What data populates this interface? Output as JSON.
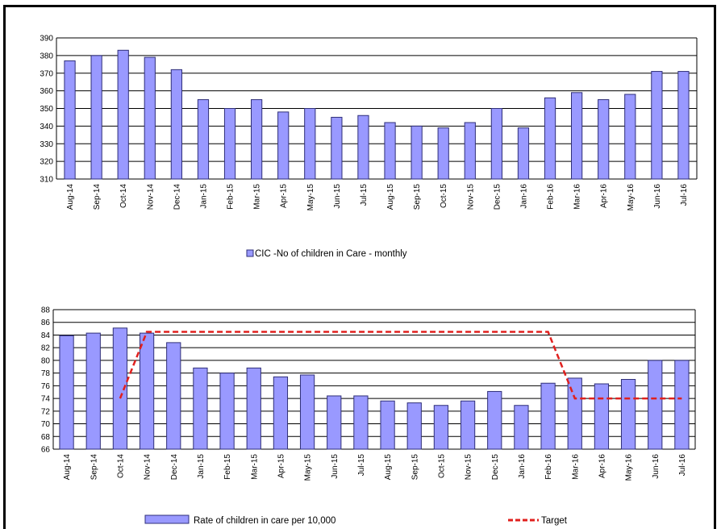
{
  "colors": {
    "bar_fill": "#9999ff",
    "bar_stroke": "#2f2f78",
    "grid": "#000000",
    "target_line": "#e0201e"
  },
  "chart_data": [
    {
      "type": "bar",
      "categories": [
        "Aug-14",
        "Sep-14",
        "Oct-14",
        "Nov-14",
        "Dec-14",
        "Jan-15",
        "Feb-15",
        "Mar-15",
        "Apr-15",
        "May-15",
        "Jun-15",
        "Jul-15",
        "Aug-15",
        "Sep-15",
        "Oct-15",
        "Nov-15",
        "Dec-15",
        "Jan-16",
        "Feb-16",
        "Mar-16",
        "Apr-16",
        "May-16",
        "Jun-16",
        "Jul-16"
      ],
      "series": [
        {
          "name": "CIC -No of children in Care - monthly",
          "values": [
            377,
            380,
            383,
            379,
            372,
            355,
            350,
            355,
            348,
            350,
            345,
            346,
            342,
            340,
            339,
            342,
            350,
            339,
            356,
            359,
            355,
            358,
            371,
            371
          ]
        }
      ],
      "ylim": [
        310,
        390
      ],
      "yticks": [
        310,
        320,
        330,
        340,
        350,
        360,
        370,
        380,
        390
      ],
      "grid": true,
      "legend": "bottom-center"
    },
    {
      "type": "bar",
      "categories": [
        "Aug-14",
        "Sep-14",
        "Oct-14",
        "Nov-14",
        "Dec-14",
        "Jan-15",
        "Feb-15",
        "Mar-15",
        "Apr-15",
        "May-15",
        "Jun-15",
        "Jul-15",
        "Aug-15",
        "Sep-15",
        "Oct-15",
        "Nov-15",
        "Dec-15",
        "Jan-16",
        "Feb-16",
        "Mar-16",
        "Apr-16",
        "May-16",
        "Jun-16",
        "Jul-16"
      ],
      "series": [
        {
          "name": "Rate of children in care per 10,000",
          "values": [
            83.9,
            84.3,
            85.1,
            84.3,
            82.8,
            78.8,
            78,
            78.8,
            77.4,
            77.7,
            74.4,
            74.4,
            73.6,
            73.3,
            72.9,
            73.6,
            75.1,
            72.9,
            76.4,
            77.2,
            76.3,
            77,
            80,
            80
          ]
        },
        {
          "name": "Target",
          "type": "line",
          "values": [
            null,
            null,
            74,
            84.5,
            84.5,
            84.5,
            84.5,
            84.5,
            84.5,
            84.5,
            84.5,
            84.5,
            84.5,
            84.5,
            84.5,
            84.5,
            84.5,
            84.5,
            84.5,
            74,
            74,
            74,
            74,
            74
          ]
        }
      ],
      "ylim": [
        66,
        88
      ],
      "yticks": [
        66,
        68,
        70,
        72,
        74,
        76,
        78,
        80,
        82,
        84,
        86,
        88
      ],
      "grid": true,
      "legend": "bottom"
    }
  ]
}
